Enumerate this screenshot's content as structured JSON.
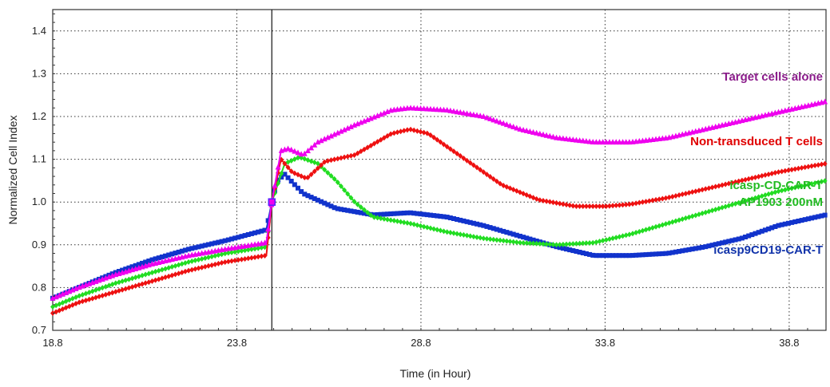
{
  "chart_data": {
    "type": "line",
    "xlabel": "Time (in Hour)",
    "ylabel": "Normalized Cell Index",
    "xlim": [
      18.8,
      39.8
    ],
    "ylim": [
      0.7,
      1.45
    ],
    "xticks": [
      "18.8",
      "23.8",
      "28.8",
      "33.8",
      "38.8"
    ],
    "yticks": [
      "0.7",
      "0.8",
      "0.9",
      "1.0",
      "1.1",
      "1.2",
      "1.3",
      "1.4"
    ],
    "grid": true,
    "vline_x": 24.75,
    "series": [
      {
        "name": "Target cells alone",
        "color": "#ee00ee",
        "marker": "triangle",
        "x": [
          18.8,
          19.5,
          20.5,
          21.5,
          22.5,
          23.5,
          24.6,
          24.75,
          25.0,
          25.2,
          25.6,
          26.0,
          27.0,
          28.0,
          28.5,
          29.5,
          30.5,
          31.5,
          32.5,
          33.5,
          34.5,
          35.5,
          36.5,
          37.5,
          38.5,
          39.8
        ],
        "values": [
          0.775,
          0.8,
          0.83,
          0.855,
          0.875,
          0.89,
          0.905,
          1.0,
          1.12,
          1.125,
          1.11,
          1.14,
          1.18,
          1.215,
          1.22,
          1.215,
          1.2,
          1.17,
          1.15,
          1.14,
          1.14,
          1.15,
          1.17,
          1.19,
          1.21,
          1.235
        ]
      },
      {
        "name": "Non-transduced T cells",
        "color": "#ee1111",
        "marker": "diamond",
        "x": [
          18.8,
          19.5,
          20.5,
          21.5,
          22.5,
          23.5,
          24.6,
          24.75,
          25.0,
          25.3,
          25.7,
          26.2,
          27.0,
          28.0,
          28.5,
          29.0,
          30.0,
          31.0,
          32.0,
          33.0,
          33.8,
          34.5,
          35.5,
          36.5,
          37.5,
          38.5,
          39.8
        ],
        "values": [
          0.74,
          0.765,
          0.79,
          0.815,
          0.84,
          0.86,
          0.875,
          1.0,
          1.1,
          1.07,
          1.055,
          1.095,
          1.11,
          1.16,
          1.17,
          1.16,
          1.1,
          1.04,
          1.005,
          0.99,
          0.99,
          0.995,
          1.01,
          1.03,
          1.05,
          1.07,
          1.09
        ]
      },
      {
        "name": "icasp-CD-CAR-T AP1903 200nM",
        "color": "#22dd22",
        "marker": "diamond",
        "x": [
          18.8,
          19.5,
          20.5,
          21.5,
          22.5,
          23.5,
          24.6,
          24.75,
          25.1,
          25.5,
          26.0,
          26.5,
          27.0,
          27.5,
          28.5,
          29.5,
          30.5,
          31.5,
          32.5,
          33.5,
          34.5,
          35.5,
          36.5,
          37.5,
          38.5,
          39.8
        ],
        "values": [
          0.755,
          0.78,
          0.81,
          0.835,
          0.86,
          0.88,
          0.895,
          1.0,
          1.09,
          1.105,
          1.09,
          1.05,
          1.0,
          0.965,
          0.95,
          0.93,
          0.915,
          0.905,
          0.9,
          0.905,
          0.925,
          0.95,
          0.975,
          1.0,
          1.025,
          1.05
        ]
      },
      {
        "name": "icasp9CD19-CAR-T",
        "color": "#1133cc",
        "marker": "square",
        "x": [
          18.8,
          19.5,
          20.5,
          21.5,
          22.5,
          23.5,
          24.6,
          24.75,
          24.9,
          25.1,
          25.6,
          26.5,
          27.5,
          28.5,
          29.5,
          30.5,
          31.5,
          32.5,
          33.5,
          34.5,
          35.5,
          36.5,
          37.5,
          38.5,
          39.8
        ],
        "values": [
          0.775,
          0.8,
          0.835,
          0.865,
          0.89,
          0.91,
          0.935,
          1.0,
          1.05,
          1.065,
          1.02,
          0.985,
          0.97,
          0.975,
          0.965,
          0.945,
          0.92,
          0.895,
          0.875,
          0.875,
          0.88,
          0.895,
          0.915,
          0.945,
          0.97
        ]
      }
    ],
    "labels": [
      {
        "text": "Target cells alone",
        "color": "#8b1c8b"
      },
      {
        "text": "Non-transduced T cells",
        "color": "#e00000"
      },
      {
        "text": "icasp-CD-CAR-T",
        "color": "#22bb22"
      },
      {
        "text": "AP1903 200nM",
        "color": "#22bb22"
      },
      {
        "text": "icasp9CD19-CAR-T",
        "color": "#1133aa"
      }
    ]
  }
}
